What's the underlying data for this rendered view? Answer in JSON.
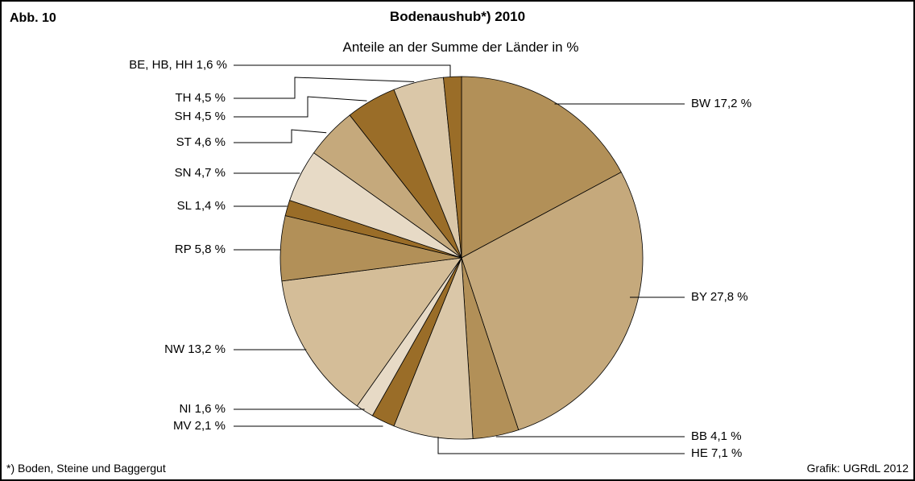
{
  "figure_label": "Abb. 10",
  "footnote": "*) Boden, Steine und Baggergut",
  "source": "Grafik: UGRdL 2012",
  "chart_data": {
    "type": "pie",
    "title": "Bodenaushub*) 2010",
    "subtitle": "Anteile an der Summe der Länder in %",
    "unit": "%",
    "start_angle_deg": 0,
    "direction": "clockwise",
    "slices": [
      {
        "label": "BW 17,2 %",
        "code": "BW",
        "value": 17.2,
        "color": "#b29058"
      },
      {
        "label": "BY 27,8 %",
        "code": "BY",
        "value": 27.8,
        "color": "#c5a97c"
      },
      {
        "label": "BB 4,1 %",
        "code": "BB",
        "value": 4.1,
        "color": "#b29058"
      },
      {
        "label": "HE 7,1 %",
        "code": "HE",
        "value": 7.1,
        "color": "#dac7a8"
      },
      {
        "label": "MV 2,1 %",
        "code": "MV",
        "value": 2.1,
        "color": "#9a6d28"
      },
      {
        "label": "NI 1,6 %",
        "code": "NI",
        "value": 1.6,
        "color": "#e7dac6"
      },
      {
        "label": "NW 13,2 %",
        "code": "NW",
        "value": 13.2,
        "color": "#d4bd98"
      },
      {
        "label": "RP 5,8 %",
        "code": "RP",
        "value": 5.8,
        "color": "#b29058"
      },
      {
        "label": "SL 1,4 %",
        "code": "SL",
        "value": 1.4,
        "color": "#9a6d28"
      },
      {
        "label": "SN 4,7 %",
        "code": "SN",
        "value": 4.7,
        "color": "#e7dac6"
      },
      {
        "label": "ST 4,6 %",
        "code": "ST",
        "value": 4.6,
        "color": "#c5a97c"
      },
      {
        "label": "SH 4,5 %",
        "code": "SH",
        "value": 4.5,
        "color": "#9a6d28"
      },
      {
        "label": "TH 4,5 %",
        "code": "TH",
        "value": 4.5,
        "color": "#dac7a8"
      },
      {
        "label": "BE, HB, HH 1,6 %",
        "code": "BE, HB, HH",
        "value": 1.6,
        "color": "#9a6d28"
      }
    ]
  }
}
